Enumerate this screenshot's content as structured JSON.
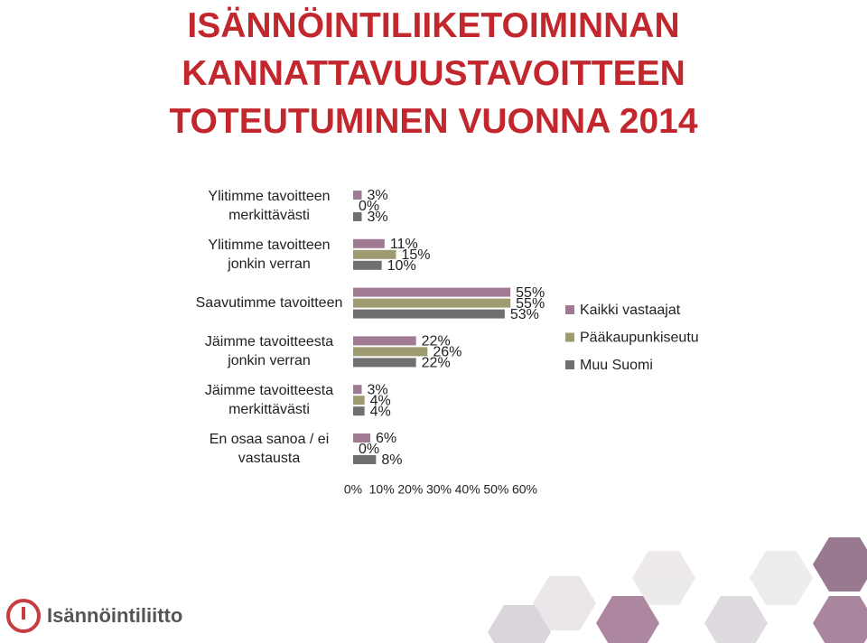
{
  "chart_data": {
    "type": "bar",
    "orientation": "horizontal",
    "title": "ISÄNNÖINTILIIKETOIMINNAN\nKANNATTAVUUSTAVOITTEEN\nTOTEUTUMINEN VUONNA 2014",
    "categories": [
      "Ylitimme tavoitteen\nmerkittävästi",
      "Ylitimme tavoitteen\njonkin verran",
      "Saavutimme tavoitteen",
      "Jäimme tavoitteesta\njonkin verran",
      "Jäimme tavoitteesta\nmerkittävästi",
      "En osaa sanoa / ei\nvastausta"
    ],
    "series": [
      {
        "name": "Kaikki vastaajat",
        "color": "#a07a93",
        "values": [
          3,
          11,
          55,
          22,
          3,
          6
        ],
        "value_labels": [
          "3%",
          "11%",
          "55%",
          "22%",
          "3%",
          "6%"
        ]
      },
      {
        "name": "Pääkaupunkiseutu",
        "color": "#9e9b70",
        "values": [
          0,
          15,
          55,
          26,
          4,
          0
        ],
        "value_labels": [
          "0%",
          "15%",
          "55%",
          "26%",
          "4%",
          "0%"
        ]
      },
      {
        "name": "Muu Suomi",
        "color": "#707070",
        "values": [
          3,
          10,
          53,
          22,
          4,
          8
        ],
        "value_labels": [
          "3%",
          "10%",
          "53%",
          "22%",
          "4%",
          "8%"
        ]
      }
    ],
    "xlim": [
      0,
      60
    ],
    "xticks": [
      {
        "value": 0,
        "label": "0%"
      },
      {
        "value": 10,
        "label": "10%"
      },
      {
        "value": 20,
        "label": "20%"
      },
      {
        "value": 30,
        "label": "30%"
      },
      {
        "value": 40,
        "label": "40%"
      },
      {
        "value": 50,
        "label": "50%"
      },
      {
        "value": 60,
        "label": "60%"
      }
    ],
    "legend": "right"
  },
  "logo": "Isännöintiliitto"
}
